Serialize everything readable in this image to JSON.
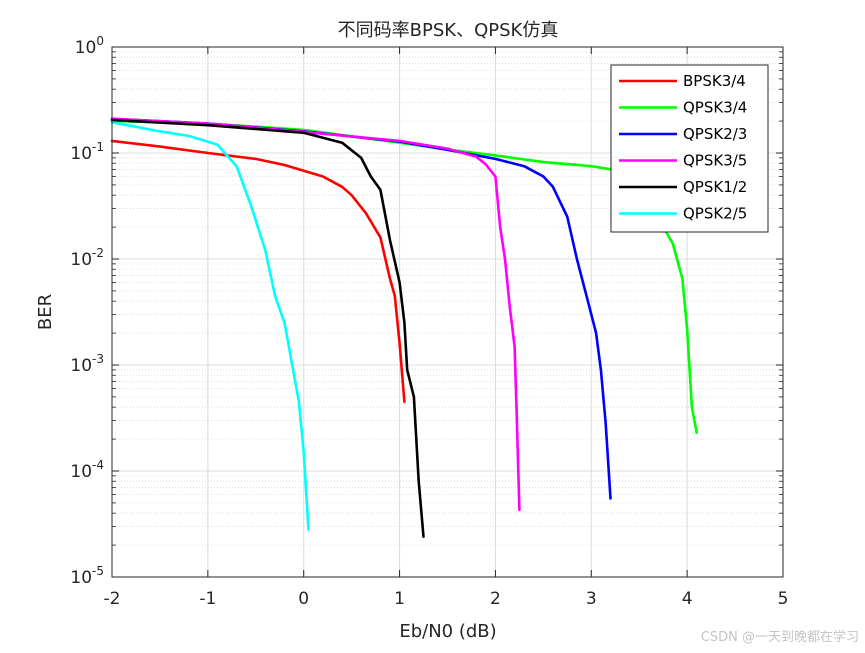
{
  "watermark": "CSDN @一天到晚都在学习",
  "chart_data": {
    "type": "line",
    "title": "不同码率BPSK、QPSK仿真",
    "xlabel": "Eb/N0 (dB)",
    "ylabel": "BER",
    "xlim": [
      -2,
      5
    ],
    "ylim": [
      1e-05,
      1
    ],
    "yscale": "log",
    "grid": true,
    "minor_grid": true,
    "legend_position": "top-right",
    "x_ticks": [
      "-2",
      "-1",
      "0",
      "1",
      "2",
      "3",
      "4",
      "5"
    ],
    "y_ticks": [
      {
        "base": "10",
        "exp": "0",
        "value": 1
      },
      {
        "base": "10",
        "exp": "-1",
        "value": 0.1
      },
      {
        "base": "10",
        "exp": "-2",
        "value": 0.01
      },
      {
        "base": "10",
        "exp": "-3",
        "value": 0.001
      },
      {
        "base": "10",
        "exp": "-4",
        "value": 0.0001
      },
      {
        "base": "10",
        "exp": "-5",
        "value": 1e-05
      }
    ],
    "series": [
      {
        "name": "BPSK3/4",
        "color": "#ff0000",
        "points": [
          [
            -2,
            0.13
          ],
          [
            -1.5,
            0.115
          ],
          [
            -1,
            0.1
          ],
          [
            -0.5,
            0.088
          ],
          [
            -0.2,
            0.077
          ],
          [
            0,
            0.068
          ],
          [
            0.2,
            0.06
          ],
          [
            0.4,
            0.048
          ],
          [
            0.5,
            0.04
          ],
          [
            0.65,
            0.027
          ],
          [
            0.8,
            0.016
          ],
          [
            0.9,
            0.0065
          ],
          [
            0.95,
            0.0045
          ],
          [
            1.0,
            0.0016
          ],
          [
            1.05,
            0.00045
          ]
        ]
      },
      {
        "name": "QPSK3/4",
        "color": "#00ff00",
        "points": [
          [
            -2,
            0.2
          ],
          [
            -1,
            0.19
          ],
          [
            0,
            0.165
          ],
          [
            1,
            0.125
          ],
          [
            1.5,
            0.108
          ],
          [
            2,
            0.095
          ],
          [
            2.5,
            0.082
          ],
          [
            3.0,
            0.075
          ],
          [
            3.3,
            0.068
          ],
          [
            3.5,
            0.062
          ],
          [
            3.6,
            0.052
          ],
          [
            3.68,
            0.04
          ],
          [
            3.75,
            0.02
          ],
          [
            3.85,
            0.014
          ],
          [
            3.95,
            0.0065
          ],
          [
            4.0,
            0.0022
          ],
          [
            4.05,
            0.0004
          ],
          [
            4.1,
            0.00023
          ]
        ]
      },
      {
        "name": "QPSK2/3",
        "color": "#0000ff",
        "points": [
          [
            -2,
            0.21
          ],
          [
            -1,
            0.19
          ],
          [
            0,
            0.16
          ],
          [
            1,
            0.128
          ],
          [
            1.5,
            0.107
          ],
          [
            2,
            0.088
          ],
          [
            2.3,
            0.075
          ],
          [
            2.5,
            0.06
          ],
          [
            2.6,
            0.048
          ],
          [
            2.75,
            0.025
          ],
          [
            2.85,
            0.01
          ],
          [
            2.95,
            0.0045
          ],
          [
            3.05,
            0.002
          ],
          [
            3.1,
            0.0009
          ],
          [
            3.15,
            0.00028
          ],
          [
            3.2,
            5.5e-05
          ]
        ]
      },
      {
        "name": "QPSK3/5",
        "color": "#ff00ff",
        "points": [
          [
            -2,
            0.21
          ],
          [
            -1,
            0.19
          ],
          [
            0,
            0.158
          ],
          [
            1,
            0.13
          ],
          [
            1.5,
            0.11
          ],
          [
            1.8,
            0.092
          ],
          [
            1.9,
            0.078
          ],
          [
            2.0,
            0.06
          ],
          [
            2.05,
            0.02
          ],
          [
            2.1,
            0.01
          ],
          [
            2.15,
            0.0035
          ],
          [
            2.2,
            0.0015
          ],
          [
            2.22,
            0.0004
          ],
          [
            2.25,
            4.3e-05
          ]
        ]
      },
      {
        "name": "QPSK1/2",
        "color": "#000000",
        "points": [
          [
            -2,
            0.205
          ],
          [
            -1,
            0.183
          ],
          [
            0,
            0.155
          ],
          [
            0.4,
            0.125
          ],
          [
            0.6,
            0.09
          ],
          [
            0.7,
            0.06
          ],
          [
            0.8,
            0.045
          ],
          [
            0.9,
            0.015
          ],
          [
            1.0,
            0.006
          ],
          [
            1.05,
            0.0025
          ],
          [
            1.08,
            0.0009
          ],
          [
            1.15,
            0.0005
          ],
          [
            1.2,
            8e-05
          ],
          [
            1.25,
            2.4e-05
          ]
        ]
      },
      {
        "name": "QPSK2/5",
        "color": "#00ffff",
        "points": [
          [
            -2,
            0.195
          ],
          [
            -1.5,
            0.16
          ],
          [
            -1.2,
            0.145
          ],
          [
            -0.9,
            0.12
          ],
          [
            -0.7,
            0.075
          ],
          [
            -0.55,
            0.032
          ],
          [
            -0.4,
            0.012
          ],
          [
            -0.3,
            0.0045
          ],
          [
            -0.2,
            0.0025
          ],
          [
            -0.1,
            0.0008
          ],
          [
            -0.05,
            0.00045
          ],
          [
            0,
            0.00015
          ],
          [
            0.05,
            2.8e-05
          ]
        ]
      }
    ]
  }
}
